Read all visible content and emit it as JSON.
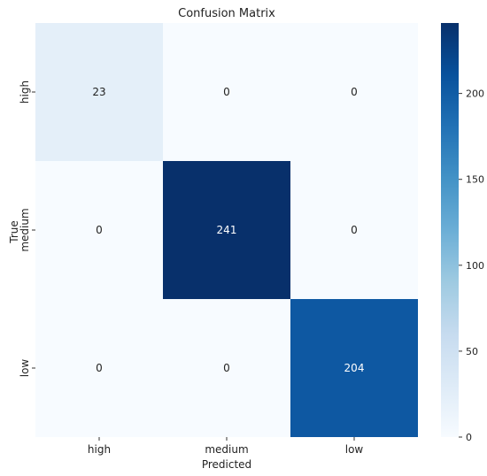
{
  "chart_data": {
    "type": "heatmap",
    "title": "Confusion Matrix",
    "xlabel": "Predicted",
    "ylabel": "True",
    "x_categories": [
      "high",
      "medium",
      "low"
    ],
    "y_categories": [
      "high",
      "medium",
      "low"
    ],
    "values": [
      [
        23,
        0,
        0
      ],
      [
        0,
        241,
        0
      ],
      [
        0,
        0,
        204
      ]
    ],
    "colorbar": {
      "ticks": [
        "0",
        "50",
        "100",
        "150",
        "200"
      ],
      "min": 0,
      "max": 241
    },
    "colormap": "Blues",
    "colors": {
      "low": "#f7fbff",
      "high": "#08306b"
    }
  }
}
